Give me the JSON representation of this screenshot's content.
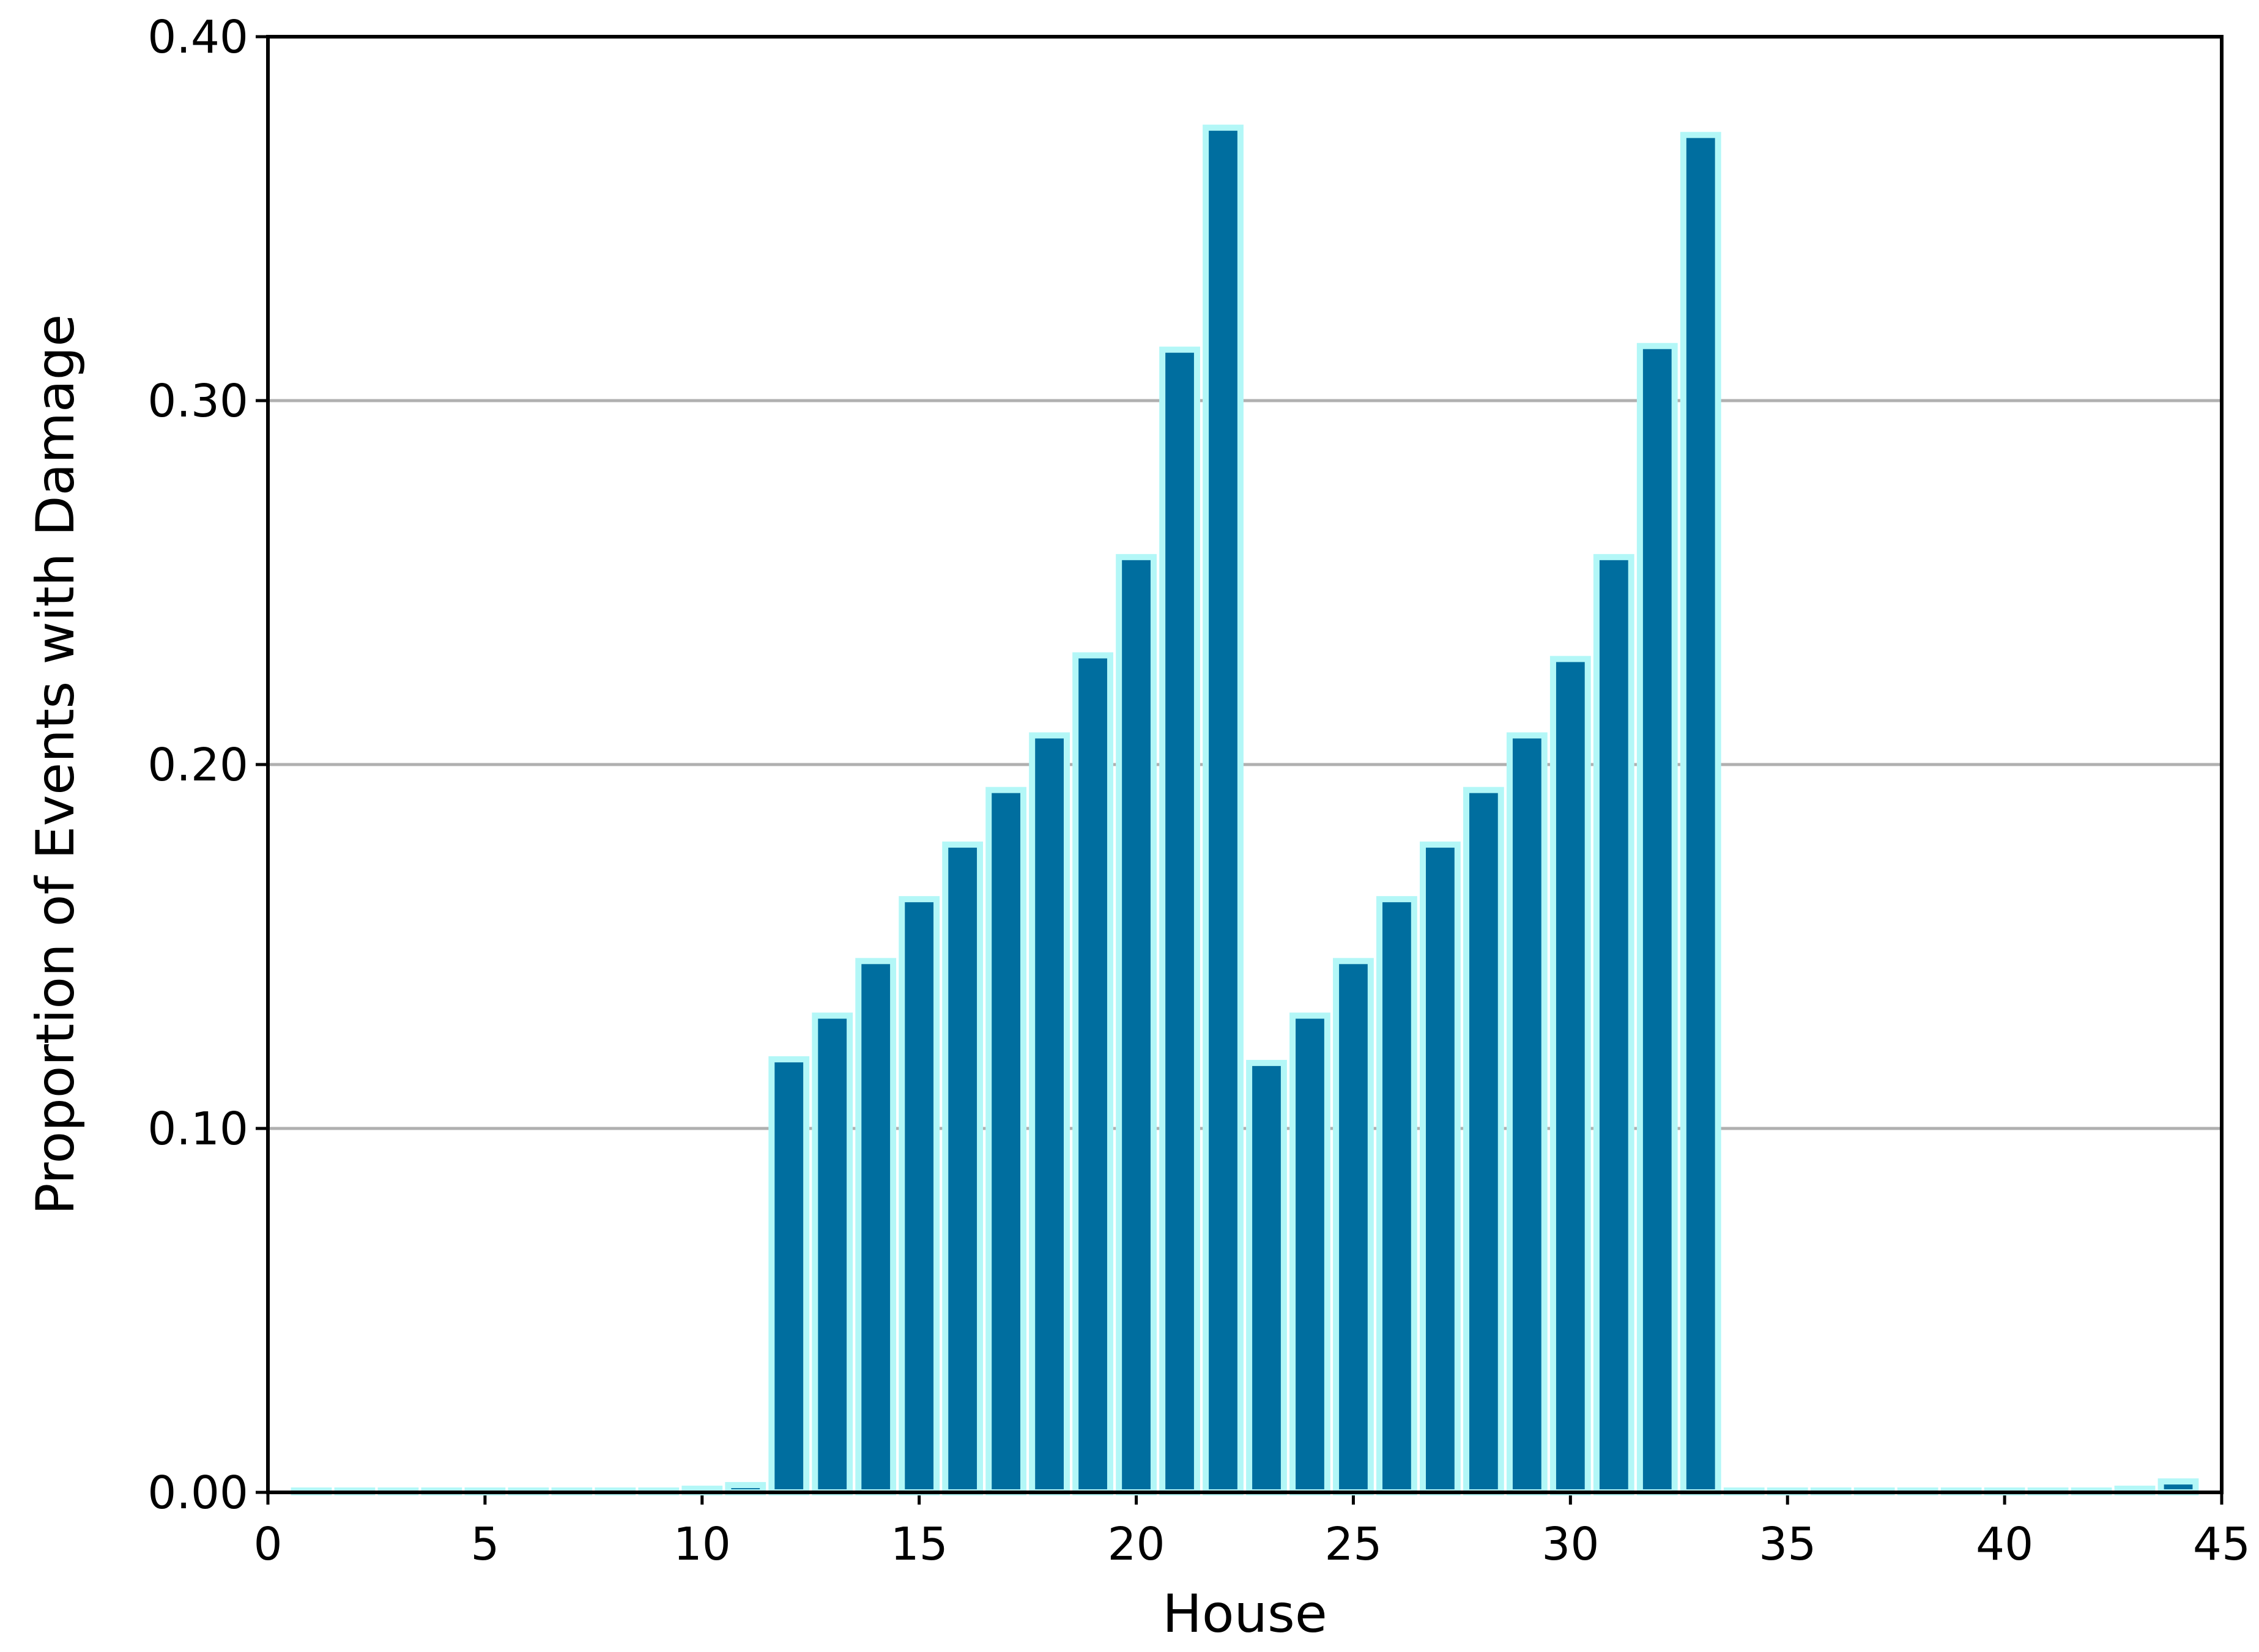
{
  "chart_data": {
    "type": "bar",
    "xlabel": "House",
    "ylabel": "Proportion of Events with Damage",
    "x": [
      1,
      2,
      3,
      4,
      5,
      6,
      7,
      8,
      9,
      10,
      11,
      12,
      13,
      14,
      15,
      16,
      17,
      18,
      19,
      20,
      21,
      22,
      23,
      24,
      25,
      26,
      27,
      28,
      29,
      30,
      31,
      32,
      33,
      34,
      35,
      36,
      37,
      38,
      39,
      40,
      41,
      42,
      43,
      44
    ],
    "values": [
      0.0005,
      0.0005,
      0.0005,
      0.0005,
      0.0005,
      0.0005,
      0.0005,
      0.0005,
      0.0005,
      0.001,
      0.002,
      0.119,
      0.131,
      0.146,
      0.163,
      0.178,
      0.193,
      0.208,
      0.23,
      0.257,
      0.314,
      0.375,
      0.118,
      0.131,
      0.146,
      0.163,
      0.178,
      0.193,
      0.208,
      0.229,
      0.257,
      0.315,
      0.373,
      0.0005,
      0.0005,
      0.0005,
      0.0005,
      0.0005,
      0.0005,
      0.0005,
      0.0005,
      0.0005,
      0.001,
      0.003
    ],
    "color": "#006e9f",
    "edgecolor": "#b3f7f7",
    "xlim": [
      0,
      45
    ],
    "xticks": [
      0,
      5,
      10,
      15,
      20,
      25,
      30,
      35,
      40,
      45
    ],
    "ylim": [
      0,
      0.4
    ],
    "yticks": [
      {
        "value": 0,
        "label": "0.00"
      },
      {
        "value": 0.1,
        "label": "0.10"
      },
      {
        "value": 0.2,
        "label": "0.20"
      },
      {
        "value": 0.3,
        "label": "0.30"
      },
      {
        "value": 0.4,
        "label": "0.40"
      }
    ],
    "grid": true
  }
}
